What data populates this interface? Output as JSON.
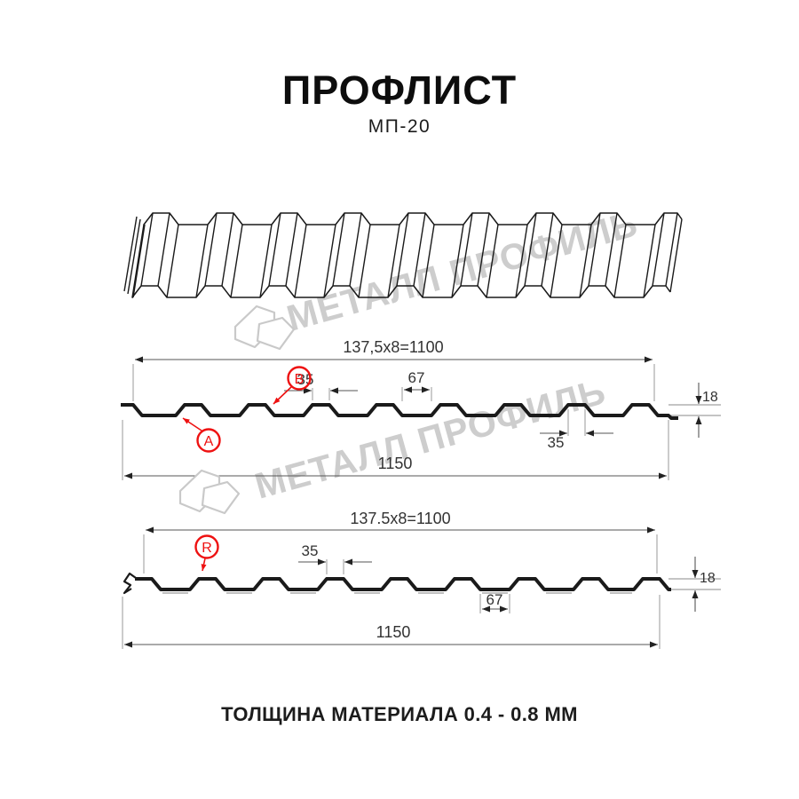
{
  "header": {
    "title": "ПРОФЛИСТ",
    "subtitle": "МП-20"
  },
  "footer": {
    "text": "ТОЛЩИНА МАТЕРИАЛА 0.4 - 0.8 ММ"
  },
  "watermark": {
    "brand_text": "МЕТАЛЛ ПРОФИЛЬ"
  },
  "colors": {
    "background": "#ffffff",
    "profile_line": "#1a1a1a",
    "dimension_line": "#777777",
    "dimension_text": "#333333",
    "label_red": "#ee1111",
    "watermark_gray": "#cdcdcd"
  },
  "profile_top_view": {
    "dim_pitch": "137,5x8=1100",
    "dim_rib_top_width": "35",
    "dim_flange_width": "67",
    "dim_height": "18",
    "dim_rib_top_width_2": "35",
    "dim_overall_width": "1150",
    "label_a": "A",
    "label_b": "B"
  },
  "profile_bottom_view": {
    "dim_pitch": "137.5x8=1100",
    "dim_rib_top_width": "35",
    "dim_height": "18",
    "dim_flange_width": "67",
    "dim_overall_width": "1150",
    "label_r": "R"
  }
}
